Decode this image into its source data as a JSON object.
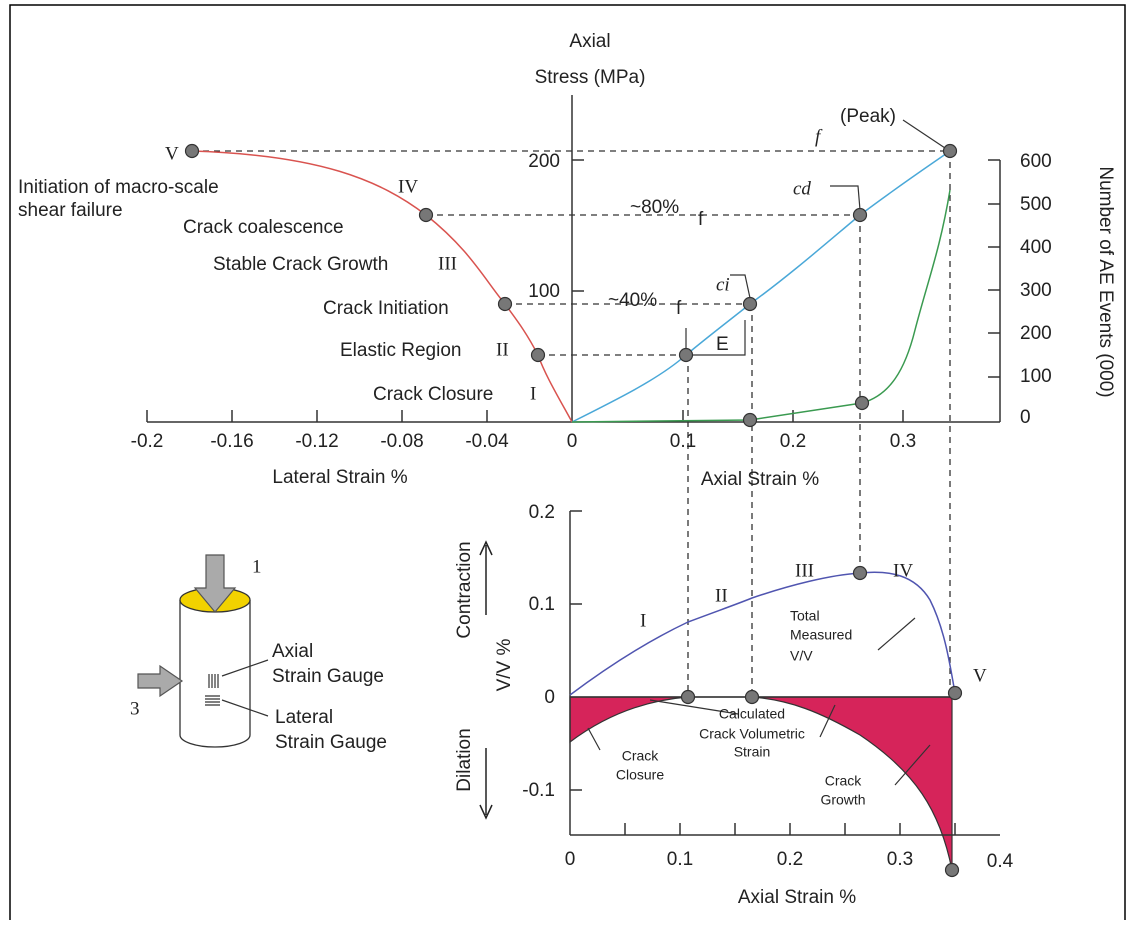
{
  "top_chart": {
    "y_axis_title": [
      "Axial",
      "Stress (MPa)"
    ],
    "y2_axis_title": "Number of AE Events (000)",
    "lateral_axis_title": "Lateral Strain %",
    "axial_axis_title": "Axial Strain %",
    "yticks": [
      "200",
      "100"
    ],
    "xticks": [
      "-0.2",
      "-0.16",
      "-0.12",
      "-0.08",
      "-0.04",
      "0",
      "0.1",
      "0.2",
      "0.3"
    ],
    "y2ticks": [
      "600",
      "500",
      "400",
      "300",
      "200",
      "100",
      "0"
    ],
    "stage_labels": [
      "V",
      "Initiation of macro-scale",
      "IV",
      "shear failure",
      "Crack coalescence",
      "Stable Crack Growth",
      "III",
      "Crack Initiation",
      "Elastic Region",
      "II",
      "Crack Closure",
      "I"
    ],
    "annotations": [
      "(Peak)",
      "f",
      "cd",
      "ci",
      "~80%",
      "f",
      "~40%",
      "f",
      "E"
    ]
  },
  "bottom_chart": {
    "y_axis_title": "V/V %",
    "contraction": "Contraction",
    "dilation": "Dilation",
    "x_axis_title": "Axial Strain %",
    "yticks": [
      "0.2",
      "0.1",
      "0",
      "-0.1"
    ],
    "xticks": [
      "0",
      "0.1",
      "0.2",
      "0.3",
      "0.4"
    ],
    "stage_labels": [
      "I",
      "II",
      "III",
      "IV",
      "V"
    ],
    "total_label": [
      "Total",
      "Measured",
      "V/V"
    ],
    "crack_vol_label": [
      "Calculated",
      "Crack Volumetric",
      "Strain"
    ],
    "closure_label": [
      "Crack",
      "Closure"
    ],
    "growth_label": [
      "Crack",
      "Growth"
    ]
  },
  "specimen": {
    "load_1": "1",
    "load_3": "3",
    "axial_gauge": [
      "Axial",
      "Strain Gauge"
    ],
    "lateral_gauge": [
      "Lateral",
      "Strain Gauge"
    ]
  }
}
